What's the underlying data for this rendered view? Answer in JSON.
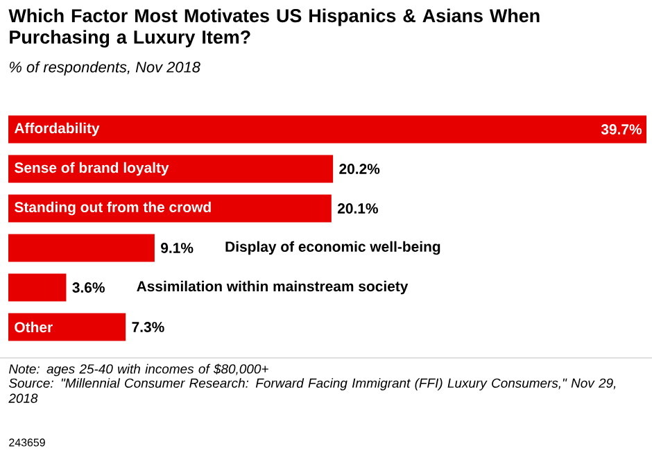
{
  "chart_data": {
    "type": "bar",
    "orientation": "horizontal",
    "title": "Which Factor Most Motivates US Hispanics & Asians When Purchasing a Luxury Item?",
    "subtitle": "% of respondents, Nov 2018",
    "categories": [
      "Affordability",
      "Sense of brand loyalty",
      "Standing out from the crowd",
      "Display of economic well-being",
      "Assimilation within mainstream society",
      "Other"
    ],
    "values": [
      39.7,
      20.2,
      20.1,
      9.1,
      3.6,
      7.3
    ],
    "value_labels": [
      "39.7%",
      "20.2%",
      "20.1%",
      "9.1%",
      "3.6%",
      "7.3%"
    ],
    "color": "#e60000",
    "annotations": [
      "Note: ages 25-40 with incomes of $80,000+",
      "Source: \"Millennial Consumer Research: Forward Facing Immigrant (FFI) Luxury Consumers,\" Nov 29, 2018",
      "243659"
    ]
  }
}
